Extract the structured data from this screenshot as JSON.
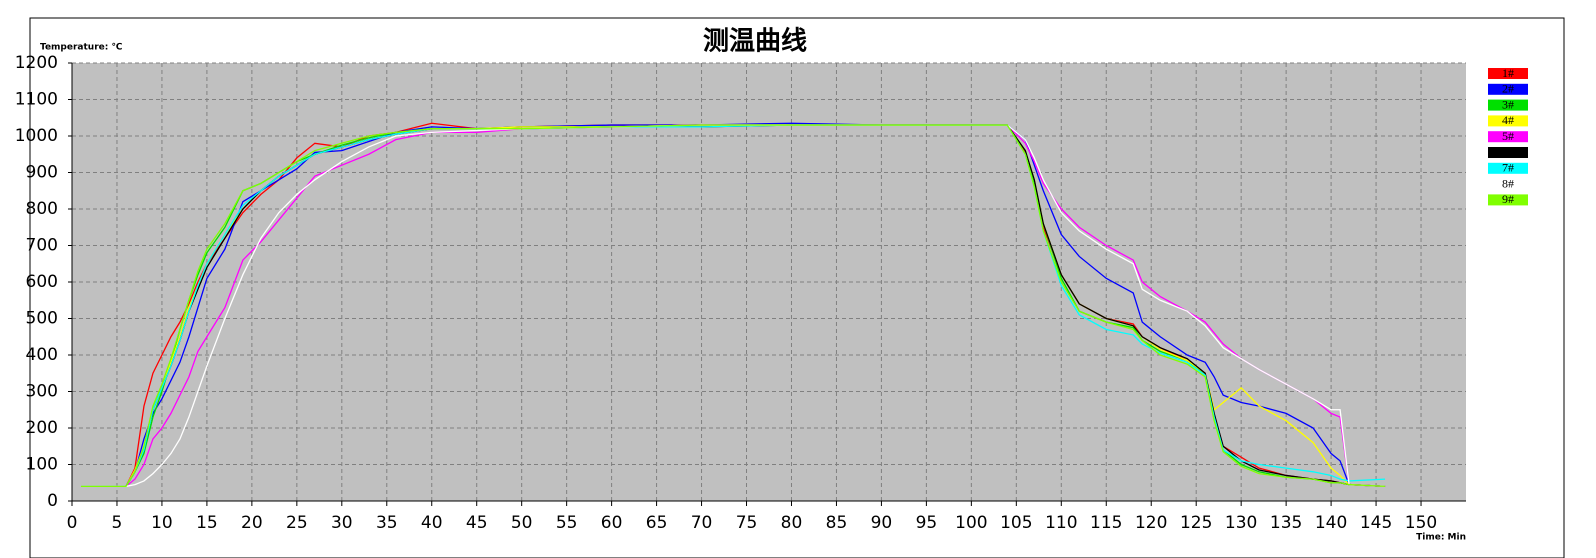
{
  "chart_data": {
    "type": "line",
    "title": "测温曲线",
    "y_label": "Temperature: ℃",
    "x_label": "Time: Min",
    "xlim": [
      0,
      155
    ],
    "ylim": [
      0,
      1200
    ],
    "xticks": [
      0,
      5,
      10,
      15,
      20,
      25,
      30,
      35,
      40,
      45,
      50,
      55,
      60,
      65,
      70,
      75,
      80,
      85,
      90,
      95,
      100,
      105,
      110,
      115,
      120,
      125,
      130,
      135,
      140,
      145,
      150
    ],
    "yticks": [
      0,
      100,
      200,
      300,
      400,
      500,
      600,
      700,
      800,
      900,
      1000,
      1100,
      1200
    ],
    "grid": true,
    "legend": "right",
    "x": [
      1,
      6,
      7,
      8,
      9,
      10,
      11,
      12,
      13,
      14,
      15,
      17,
      19,
      21,
      23,
      25,
      27,
      30,
      33,
      36,
      40,
      45,
      50,
      60,
      70,
      80,
      90,
      100,
      104,
      106,
      107,
      108,
      110,
      112,
      115,
      118,
      119,
      121,
      124,
      126,
      127,
      128,
      130,
      132,
      135,
      138,
      140,
      141,
      142,
      146
    ],
    "series": [
      {
        "name": "1#",
        "color": "#ff0000",
        "values": [
          40,
          40,
          90,
          260,
          350,
          400,
          450,
          490,
          540,
          600,
          650,
          720,
          790,
          840,
          880,
          940,
          980,
          970,
          1000,
          1010,
          1035,
          1020,
          1025,
          1030,
          1030,
          1030,
          1030,
          1030,
          1030,
          955,
          870,
          750,
          620,
          540,
          500,
          485,
          450,
          420,
          385,
          350,
          235,
          150,
          120,
          90,
          70,
          60,
          55,
          50,
          45,
          40
        ]
      },
      {
        "name": "2#",
        "color": "#0000ff",
        "values": [
          40,
          40,
          80,
          170,
          240,
          280,
          330,
          380,
          450,
          530,
          610,
          690,
          820,
          850,
          880,
          910,
          955,
          960,
          985,
          1010,
          1025,
          1020,
          1025,
          1030,
          1030,
          1035,
          1030,
          1030,
          1030,
          990,
          920,
          850,
          730,
          670,
          610,
          570,
          490,
          450,
          400,
          380,
          340,
          290,
          270,
          260,
          240,
          200,
          130,
          110,
          45,
          40
        ]
      },
      {
        "name": "3#",
        "color": "#00e000",
        "values": [
          40,
          40,
          80,
          130,
          230,
          300,
          380,
          470,
          550,
          620,
          680,
          750,
          850,
          870,
          900,
          930,
          950,
          975,
          995,
          1010,
          1020,
          1020,
          1025,
          1025,
          1030,
          1030,
          1030,
          1030,
          1030,
          960,
          870,
          760,
          610,
          520,
          490,
          475,
          440,
          410,
          385,
          345,
          230,
          140,
          100,
          80,
          65,
          60,
          50,
          50,
          45,
          40
        ]
      },
      {
        "name": "4#",
        "color": "#ffff00",
        "values": [
          40,
          40,
          85,
          150,
          250,
          310,
          380,
          450,
          530,
          590,
          650,
          730,
          800,
          850,
          890,
          920,
          950,
          970,
          990,
          1005,
          1020,
          1020,
          1025,
          1025,
          1030,
          1030,
          1030,
          1030,
          1030,
          960,
          880,
          760,
          620,
          540,
          500,
          480,
          450,
          415,
          385,
          350,
          250,
          270,
          310,
          260,
          220,
          160,
          90,
          70,
          45,
          40
        ]
      },
      {
        "name": "5#",
        "color": "#ff00ff",
        "values": [
          40,
          40,
          60,
          100,
          170,
          200,
          240,
          290,
          340,
          410,
          450,
          530,
          660,
          710,
          770,
          830,
          890,
          920,
          950,
          990,
          1010,
          1010,
          1020,
          1025,
          1030,
          1030,
          1030,
          1030,
          1030,
          980,
          930,
          870,
          800,
          750,
          700,
          660,
          600,
          560,
          520,
          490,
          460,
          430,
          390,
          360,
          320,
          280,
          240,
          230,
          45,
          40
        ]
      },
      {
        "name": "6#",
        "color": "#000000",
        "values": [
          40,
          40,
          80,
          140,
          250,
          310,
          370,
          440,
          520,
          580,
          640,
          720,
          800,
          850,
          890,
          920,
          950,
          970,
          990,
          1005,
          1020,
          1020,
          1020,
          1025,
          1025,
          1030,
          1030,
          1030,
          1030,
          960,
          880,
          760,
          620,
          540,
          500,
          480,
          450,
          420,
          390,
          350,
          240,
          150,
          110,
          85,
          70,
          60,
          55,
          50,
          45,
          40
        ]
      },
      {
        "name": "7#",
        "color": "#00ffff",
        "values": [
          40,
          40,
          80,
          140,
          250,
          310,
          370,
          440,
          520,
          590,
          650,
          730,
          810,
          850,
          890,
          920,
          950,
          970,
          990,
          1005,
          1020,
          1020,
          1020,
          1025,
          1025,
          1030,
          1030,
          1030,
          1030,
          950,
          860,
          740,
          590,
          510,
          470,
          455,
          430,
          405,
          380,
          345,
          230,
          140,
          110,
          100,
          90,
          80,
          70,
          60,
          55,
          60
        ]
      },
      {
        "name": "8#",
        "color": "#ffffff",
        "values": [
          40,
          40,
          45,
          55,
          75,
          100,
          130,
          170,
          230,
          300,
          370,
          500,
          620,
          720,
          790,
          840,
          880,
          930,
          970,
          1000,
          1010,
          1015,
          1020,
          1025,
          1030,
          1030,
          1030,
          1030,
          1030,
          990,
          940,
          880,
          790,
          740,
          690,
          650,
          580,
          550,
          520,
          480,
          450,
          420,
          390,
          360,
          320,
          280,
          250,
          250,
          45,
          40
        ]
      },
      {
        "name": "9#",
        "color": "#80ff00",
        "values": [
          40,
          40,
          80,
          150,
          260,
          320,
          390,
          470,
          550,
          630,
          690,
          760,
          850,
          870,
          900,
          930,
          960,
          980,
          1000,
          1010,
          1020,
          1020,
          1020,
          1025,
          1030,
          1030,
          1030,
          1030,
          1030,
          950,
          860,
          740,
          600,
          520,
          490,
          470,
          440,
          400,
          375,
          340,
          220,
          135,
          95,
          75,
          65,
          60,
          50,
          50,
          45,
          40
        ]
      }
    ]
  }
}
